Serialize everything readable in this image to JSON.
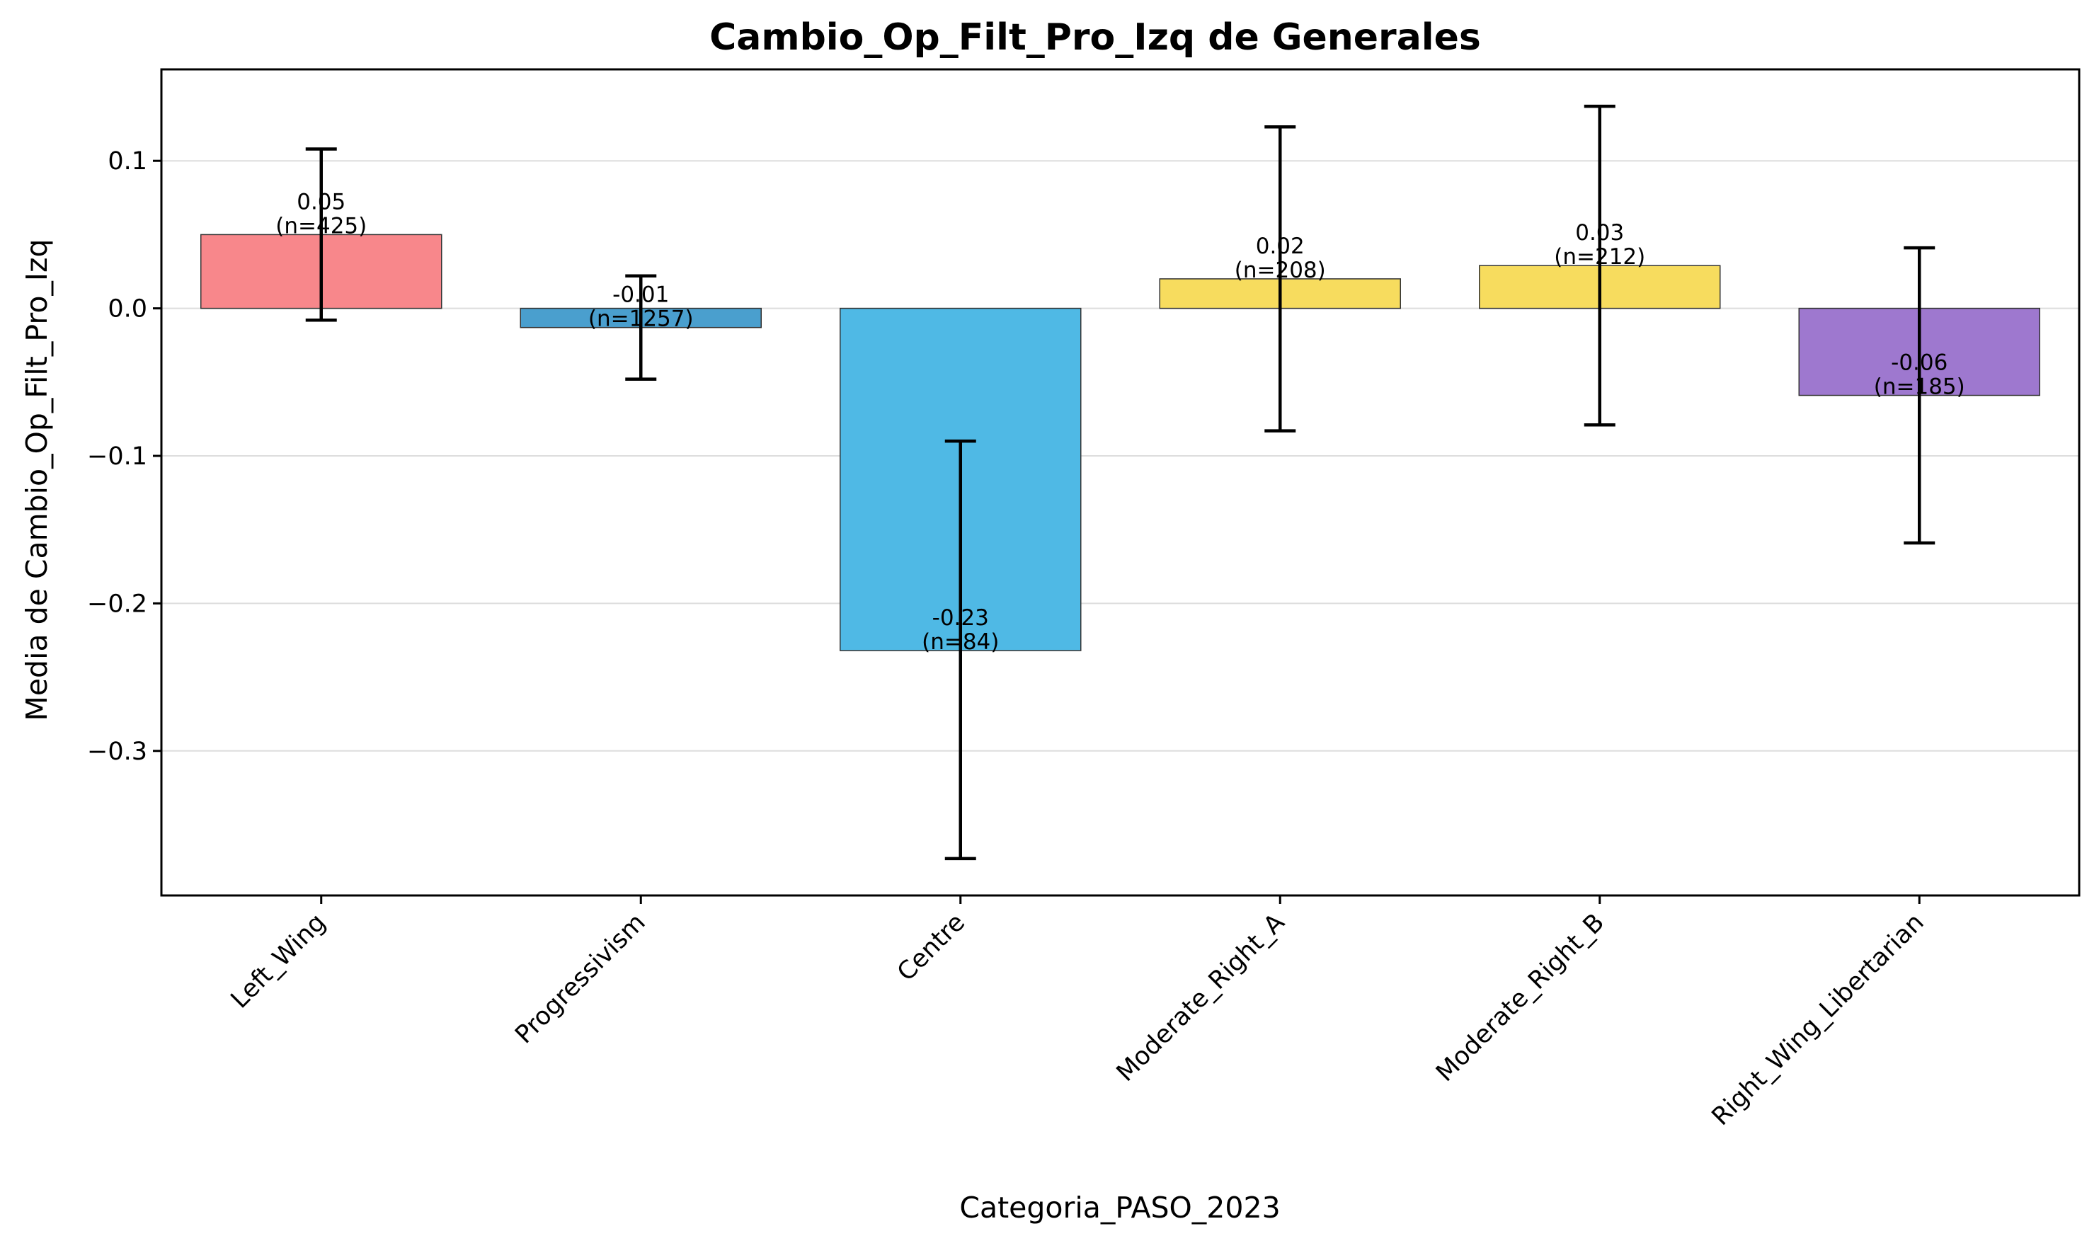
{
  "chart_data": {
    "type": "bar",
    "title": "Cambio_Op_Filt_Pro_Izq de Generales",
    "xlabel": "Categoria_PASO_2023",
    "ylabel": "Media de Cambio_Op_Filt_Pro_Izq",
    "categories": [
      "Left_Wing",
      "Progressivism",
      "Centre",
      "Moderate_Right_A",
      "Moderate_Right_B",
      "Right_Wing_Libertarian"
    ],
    "values": [
      0.05,
      -0.013,
      -0.232,
      0.02,
      0.029,
      -0.059
    ],
    "error_low": [
      -0.008,
      -0.048,
      -0.373,
      -0.083,
      -0.079,
      -0.159
    ],
    "error_high": [
      0.108,
      0.022,
      -0.09,
      0.123,
      0.137,
      0.041
    ],
    "value_labels": [
      "0.05",
      "-0.01",
      "-0.23",
      "0.02",
      "0.03",
      "-0.06"
    ],
    "n_labels": [
      "(n=425)",
      "(n=1257)",
      "(n=84)",
      "(n=208)",
      "(n=212)",
      "(n=185)"
    ],
    "colors": [
      "#f8878b",
      "#4a9fce",
      "#4fb9e5",
      "#f7dc5e",
      "#f7dc5e",
      "#9e78cf"
    ],
    "ylim": [
      -0.398,
      0.162
    ],
    "yticks": [
      0.1,
      0.0,
      -0.1,
      -0.2,
      -0.3
    ],
    "ytick_labels": [
      "0.1",
      "0.0",
      "−0.1",
      "−0.2",
      "−0.3"
    ],
    "grid": "horizontal",
    "legend": "none"
  }
}
